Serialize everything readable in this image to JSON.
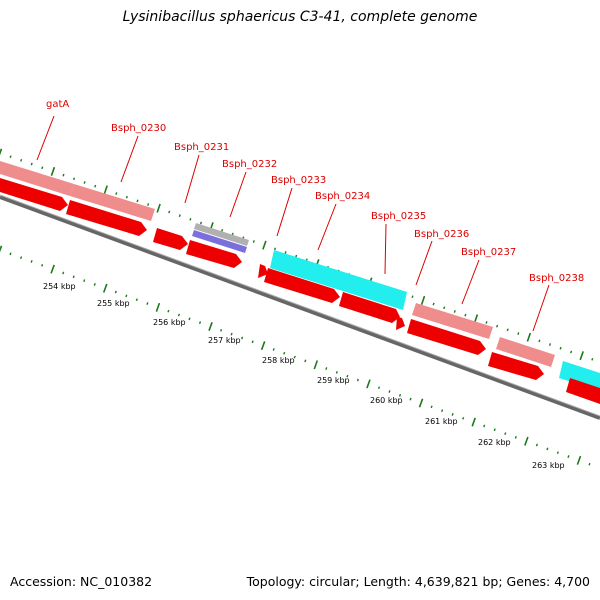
{
  "title": "Lysinibacillus sphaericus C3-41, complete genome",
  "footer": {
    "accession_text": "Accession: NC_010382",
    "summary_text": "Topology: circular; Length: 4,639,821 bp; Genes: 4,700"
  },
  "colors": {
    "label": "#dd0000",
    "leader": "#dd0000",
    "gc_ticks": "#1a7a1a",
    "backbone": "#888888",
    "strand_forward_pink": "#ef8c8c",
    "strand_reverse_red": "#ee0000",
    "cyan_feature": "#22eeee",
    "grey_feature": "#b0b0b0",
    "blue_feature": "#7b6fdd"
  },
  "gene_labels": [
    {
      "name": "gatA"
    },
    {
      "name": "Bsph_0230"
    },
    {
      "name": "Bsph_0231"
    },
    {
      "name": "Bsph_0232"
    },
    {
      "name": "Bsph_0233"
    },
    {
      "name": "Bsph_0234"
    },
    {
      "name": "Bsph_0235"
    },
    {
      "name": "Bsph_0236"
    },
    {
      "name": "Bsph_0237"
    },
    {
      "name": "Bsph_0238"
    }
  ],
  "scale_labels": [
    "254 kbp",
    "255 kbp",
    "256 kbp",
    "257 kbp",
    "258 kbp",
    "259 kbp",
    "260 kbp",
    "261 kbp",
    "262 kbp",
    "263 kbp"
  ]
}
